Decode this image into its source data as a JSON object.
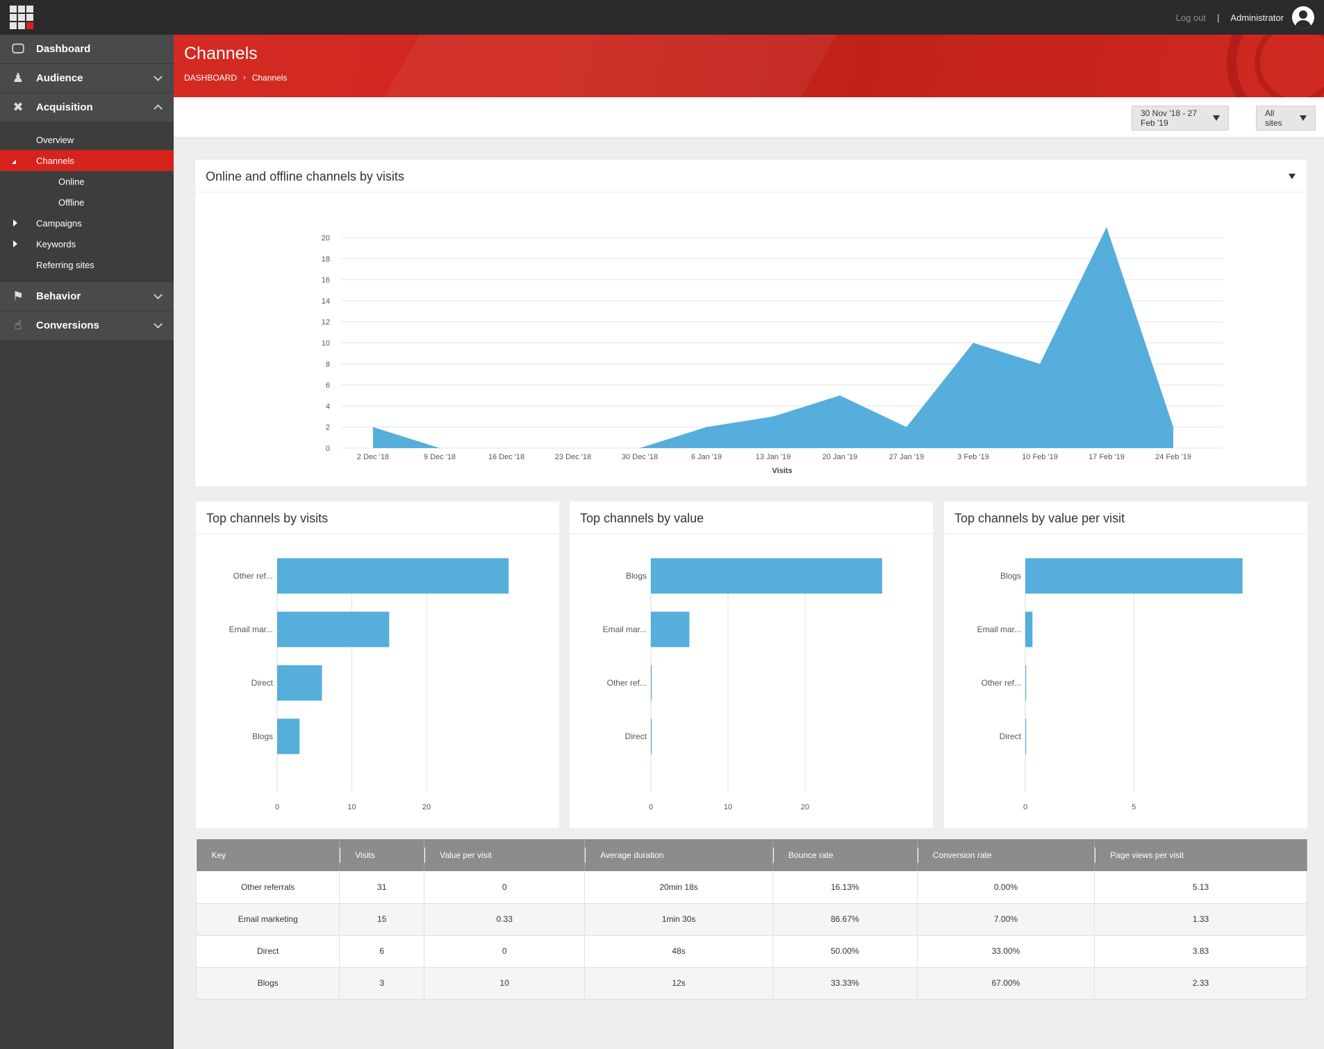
{
  "topbar": {
    "logout": "Log out",
    "separator": "|",
    "user": "Administrator"
  },
  "sidebar": {
    "dashboard": "Dashboard",
    "audience": "Audience",
    "acquisition": "Acquisition",
    "sub": [
      "Overview",
      "Channels",
      "Online",
      "Offline",
      "Campaigns",
      "Keywords",
      "Referring sites"
    ],
    "behavior": "Behavior",
    "conversions": "Conversions"
  },
  "header": {
    "title": "Channels",
    "crumb_root": "DASHBOARD",
    "crumb_current": "Channels",
    "crumb_sep": "›"
  },
  "filters": {
    "date_range": "30 Nov '18 - 27 Feb '19",
    "sites": "All sites"
  },
  "chart_data": [
    {
      "type": "area",
      "title": "Online and offline channels by visits",
      "xlabel": "Visits",
      "ylabel": "",
      "ylim": [
        0,
        20
      ],
      "yticks": [
        0,
        2,
        4,
        6,
        8,
        10,
        12,
        14,
        16,
        18,
        20
      ],
      "categories": [
        "2 Dec '18",
        "9 Dec '18",
        "16 Dec '18",
        "23 Dec '18",
        "30 Dec '18",
        "6 Jan '19",
        "13 Jan '19",
        "20 Jan '19",
        "27 Jan '19",
        "3 Feb '19",
        "10 Feb '19",
        "17 Feb '19",
        "24 Feb '19"
      ],
      "series": [
        {
          "name": "Visits",
          "values": [
            2,
            0,
            0,
            0,
            0,
            2,
            3,
            5,
            2,
            10,
            8,
            21,
            2
          ]
        }
      ]
    },
    {
      "type": "bar",
      "orientation": "horizontal",
      "title": "Top channels by visits",
      "categories": [
        "Other ref...",
        "Email mar...",
        "Direct",
        "Blogs"
      ],
      "values": [
        31,
        15,
        6,
        3
      ],
      "xticks": [
        0,
        10,
        20
      ],
      "xlim": [
        0,
        32
      ]
    },
    {
      "type": "bar",
      "orientation": "horizontal",
      "title": "Top channels by value",
      "categories": [
        "Blogs",
        "Email mar...",
        "Other ref...",
        "Direct"
      ],
      "values": [
        30,
        5,
        0,
        0
      ],
      "xticks": [
        0,
        10,
        20
      ],
      "xlim": [
        0,
        31
      ]
    },
    {
      "type": "bar",
      "orientation": "horizontal",
      "title": "Top channels by value per visit",
      "categories": [
        "Blogs",
        "Email mar...",
        "Other ref...",
        "Direct"
      ],
      "values": [
        10,
        0.33,
        0,
        0
      ],
      "xticks": [
        0,
        5
      ],
      "xlim": [
        0,
        11
      ]
    }
  ],
  "table": {
    "headers": [
      "Key",
      "Visits",
      "Value per visit",
      "Average duration",
      "Bounce rate",
      "Conversion rate",
      "Page views per visit"
    ],
    "rows": [
      [
        "Other referrals",
        "31",
        "0",
        "20min 18s",
        "16.13%",
        "0.00%",
        "5.13"
      ],
      [
        "Email marketing",
        "15",
        "0.33",
        "1min 30s",
        "86.67%",
        "7.00%",
        "1.33"
      ],
      [
        "Direct",
        "6",
        "0",
        "48s",
        "50.00%",
        "33.00%",
        "3.83"
      ],
      [
        "Blogs",
        "3",
        "10",
        "12s",
        "33.33%",
        "67.00%",
        "2.33"
      ]
    ]
  },
  "colors": {
    "accent": "#d6231c",
    "bar": "#55aedb",
    "sidebar": "#3d3d3d",
    "topbar": "#2b2b2b"
  }
}
